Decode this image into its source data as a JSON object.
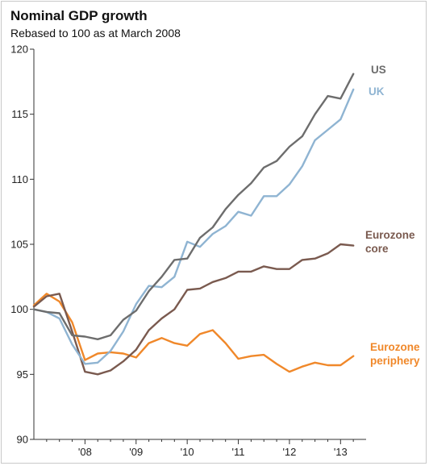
{
  "chart_data": {
    "type": "line",
    "title": "Nominal GDP growth",
    "subtitle": "Rebased to 100 as at March 2008",
    "ylim": [
      90,
      120
    ],
    "yticks": [
      90,
      95,
      100,
      105,
      110,
      115,
      120
    ],
    "xlim": [
      2007.0,
      2013.5
    ],
    "xticks": [
      {
        "label": "'08",
        "value": 2008.0
      },
      {
        "label": "'09",
        "value": 2009.0
      },
      {
        "label": "'10",
        "value": 2010.0
      },
      {
        "label": "'11",
        "value": 2011.0
      },
      {
        "label": "'12",
        "value": 2012.0
      },
      {
        "label": "'13",
        "value": 2013.0
      }
    ],
    "grid": false,
    "legend": "inline-right",
    "series": [
      {
        "name": "US",
        "label_lines": [
          "US"
        ],
        "color": "#6d6d6d",
        "points": [
          [
            2007.0,
            100.0
          ],
          [
            2007.25,
            99.8
          ],
          [
            2007.5,
            99.7
          ],
          [
            2007.75,
            98.0
          ],
          [
            2008.0,
            97.9
          ],
          [
            2008.25,
            97.7
          ],
          [
            2008.5,
            98.0
          ],
          [
            2008.75,
            99.2
          ],
          [
            2009.0,
            99.9
          ],
          [
            2009.25,
            101.4
          ],
          [
            2009.5,
            102.5
          ],
          [
            2009.75,
            103.8
          ],
          [
            2010.0,
            103.9
          ],
          [
            2010.25,
            105.5
          ],
          [
            2010.5,
            106.3
          ],
          [
            2010.75,
            107.7
          ],
          [
            2011.0,
            108.8
          ],
          [
            2011.25,
            109.7
          ],
          [
            2011.5,
            110.9
          ],
          [
            2011.75,
            111.4
          ],
          [
            2012.0,
            112.5
          ],
          [
            2012.25,
            113.3
          ],
          [
            2012.5,
            115.0
          ],
          [
            2012.75,
            116.4
          ],
          [
            2013.0,
            116.2
          ],
          [
            2013.25,
            118.1
          ]
        ]
      },
      {
        "name": "UK",
        "label_lines": [
          "UK"
        ],
        "color": "#8fb4d2",
        "points": [
          [
            2007.0,
            100.0
          ],
          [
            2007.25,
            99.8
          ],
          [
            2007.5,
            99.3
          ],
          [
            2007.75,
            97.3
          ],
          [
            2008.0,
            95.8
          ],
          [
            2008.25,
            95.9
          ],
          [
            2008.5,
            96.8
          ],
          [
            2008.75,
            98.3
          ],
          [
            2009.0,
            100.4
          ],
          [
            2009.25,
            101.8
          ],
          [
            2009.5,
            101.7
          ],
          [
            2009.75,
            102.5
          ],
          [
            2010.0,
            105.2
          ],
          [
            2010.25,
            104.8
          ],
          [
            2010.5,
            105.8
          ],
          [
            2010.75,
            106.4
          ],
          [
            2011.0,
            107.5
          ],
          [
            2011.25,
            107.2
          ],
          [
            2011.5,
            108.7
          ],
          [
            2011.75,
            108.7
          ],
          [
            2012.0,
            109.6
          ],
          [
            2012.25,
            111.0
          ],
          [
            2012.5,
            113.0
          ],
          [
            2012.75,
            113.8
          ],
          [
            2013.0,
            114.6
          ],
          [
            2013.25,
            116.9
          ]
        ]
      },
      {
        "name": "Eurozone core",
        "label_lines": [
          "Eurozone",
          "core"
        ],
        "color": "#7a5a4f",
        "points": [
          [
            2007.0,
            100.2
          ],
          [
            2007.25,
            101.0
          ],
          [
            2007.5,
            101.2
          ],
          [
            2007.75,
            98.3
          ],
          [
            2008.0,
            95.2
          ],
          [
            2008.25,
            95.0
          ],
          [
            2008.5,
            95.3
          ],
          [
            2008.75,
            96.0
          ],
          [
            2009.0,
            96.9
          ],
          [
            2009.25,
            98.4
          ],
          [
            2009.5,
            99.3
          ],
          [
            2009.75,
            100.0
          ],
          [
            2010.0,
            101.5
          ],
          [
            2010.25,
            101.6
          ],
          [
            2010.5,
            102.1
          ],
          [
            2010.75,
            102.4
          ],
          [
            2011.0,
            102.9
          ],
          [
            2011.25,
            102.9
          ],
          [
            2011.5,
            103.3
          ],
          [
            2011.75,
            103.1
          ],
          [
            2012.0,
            103.1
          ],
          [
            2012.25,
            103.8
          ],
          [
            2012.5,
            103.9
          ],
          [
            2012.75,
            104.3
          ],
          [
            2013.0,
            105.0
          ],
          [
            2013.25,
            104.9
          ]
        ]
      },
      {
        "name": "Eurozone periphery",
        "label_lines": [
          "Eurozone",
          "periphery"
        ],
        "color": "#f0882a",
        "points": [
          [
            2007.0,
            100.3
          ],
          [
            2007.25,
            101.2
          ],
          [
            2007.5,
            100.6
          ],
          [
            2007.75,
            99.0
          ],
          [
            2008.0,
            96.1
          ],
          [
            2008.25,
            96.6
          ],
          [
            2008.5,
            96.7
          ],
          [
            2008.75,
            96.6
          ],
          [
            2009.0,
            96.3
          ],
          [
            2009.25,
            97.4
          ],
          [
            2009.5,
            97.8
          ],
          [
            2009.75,
            97.4
          ],
          [
            2010.0,
            97.2
          ],
          [
            2010.25,
            98.1
          ],
          [
            2010.5,
            98.4
          ],
          [
            2010.75,
            97.4
          ],
          [
            2011.0,
            96.2
          ],
          [
            2011.25,
            96.4
          ],
          [
            2011.5,
            96.5
          ],
          [
            2011.75,
            95.8
          ],
          [
            2012.0,
            95.2
          ],
          [
            2012.25,
            95.6
          ],
          [
            2012.5,
            95.9
          ],
          [
            2012.75,
            95.7
          ],
          [
            2013.0,
            95.7
          ],
          [
            2013.25,
            96.4
          ]
        ]
      }
    ]
  }
}
